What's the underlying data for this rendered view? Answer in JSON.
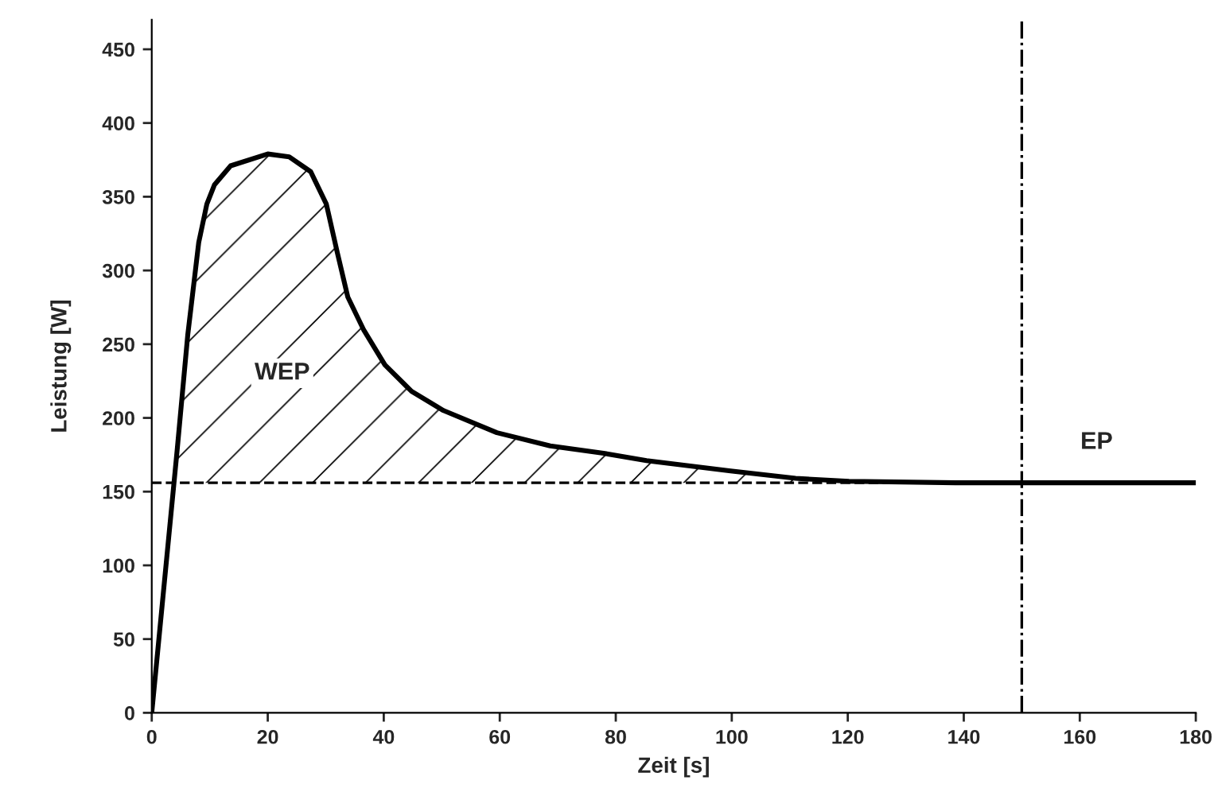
{
  "chart_data": {
    "type": "line",
    "xlabel": "Zeit [s]",
    "ylabel": "Leistung [W]",
    "series": [
      {
        "color": "#000000",
        "x": [
          0,
          4.4,
          6.2,
          8.1,
          9.5,
          10.8,
          13.6,
          20,
          23.7,
          27.4,
          30.1,
          32,
          33.8,
          36.5,
          40.2,
          44.8,
          50.3,
          59.5,
          68.7,
          77.9,
          85.3,
          99.8,
          111,
          120.2,
          138.6,
          180
        ],
        "values": [
          0,
          179,
          256,
          319,
          345,
          358,
          371,
          379,
          377,
          367,
          345,
          312,
          282,
          260,
          236,
          218,
          205,
          190,
          181,
          176,
          171,
          164,
          159,
          157,
          156,
          156
        ],
        "lower": [
          null,
          156,
          156,
          156,
          156,
          156,
          156,
          156,
          156,
          156,
          156,
          156,
          156,
          156,
          156,
          156,
          156,
          156,
          156,
          156,
          156,
          156,
          156,
          156,
          null,
          null
        ],
        "upper": [
          null,
          179,
          256,
          319,
          345,
          358,
          371,
          379,
          377,
          367,
          345,
          312,
          282,
          260,
          236,
          218,
          205,
          190,
          181,
          176,
          171,
          164,
          159,
          157,
          null,
          null
        ]
      }
    ],
    "xlim": [
      0,
      180
    ],
    "ylim": [
      0,
      470
    ],
    "xticks": [
      0,
      20,
      40,
      60,
      80,
      100,
      120,
      140,
      160,
      180
    ],
    "yticks": [
      0,
      50,
      100,
      150,
      200,
      250,
      300,
      350,
      400,
      450
    ],
    "ref_lines": [
      {
        "axis": "y",
        "value": 156,
        "line_style": "dashed",
        "color": "#000000"
      },
      {
        "axis": "x",
        "value": 150,
        "line_style": "dashdot",
        "color": "#000000"
      }
    ],
    "annotations": [
      "WEP",
      "EP"
    ],
    "grid": false,
    "legend": false,
    "marker": "none",
    "line_style": "solid"
  }
}
